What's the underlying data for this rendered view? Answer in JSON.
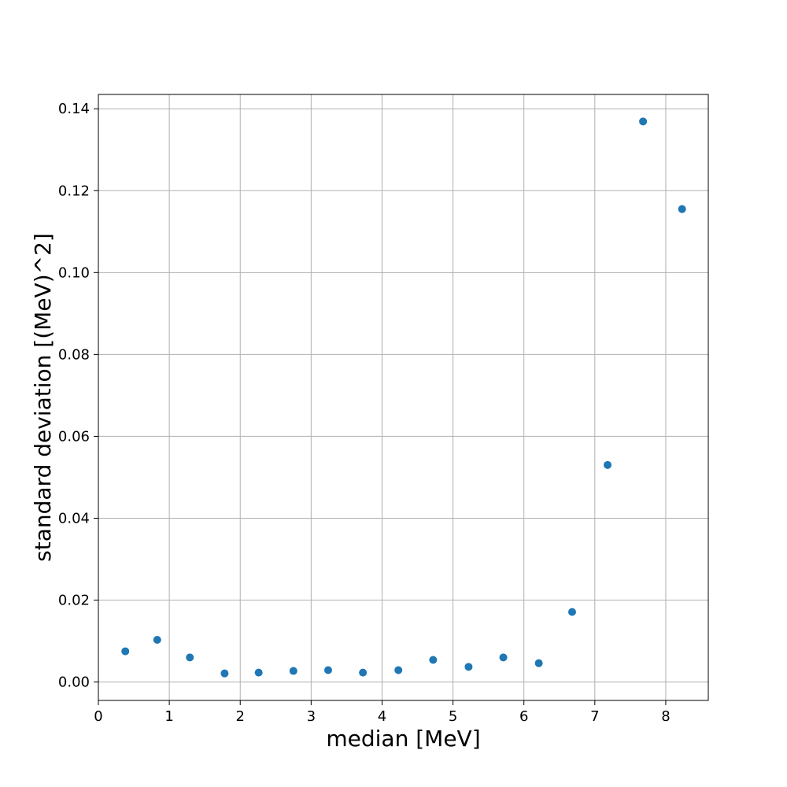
{
  "chart_data": {
    "type": "scatter",
    "title": "",
    "xlabel": "median [MeV]",
    "ylabel": "standard deviation [(MeV)^2]",
    "xlim": [
      0,
      8.6
    ],
    "ylim": [
      -0.0045,
      0.1435
    ],
    "grid": true,
    "marker_color": "#1f77b4",
    "x_ticks": [
      0,
      1,
      2,
      3,
      4,
      5,
      6,
      7,
      8
    ],
    "x_tick_labels": [
      "0",
      "1",
      "2",
      "3",
      "4",
      "5",
      "6",
      "7",
      "8"
    ],
    "y_ticks": [
      0.0,
      0.02,
      0.04,
      0.06,
      0.08,
      0.1,
      0.12,
      0.14
    ],
    "y_tick_labels": [
      "0.00",
      "0.02",
      "0.04",
      "0.06",
      "0.08",
      "0.10",
      "0.12",
      "0.14"
    ],
    "series": [
      {
        "x": [
          0.38,
          0.83,
          1.29,
          1.78,
          2.26,
          2.75,
          3.24,
          3.73,
          4.23,
          4.72,
          5.22,
          5.71,
          6.21,
          6.68,
          7.18,
          7.68,
          8.23
        ],
        "y": [
          0.0075,
          0.0103,
          0.006,
          0.0021,
          0.0023,
          0.0027,
          0.0029,
          0.0023,
          0.0029,
          0.0054,
          0.0037,
          0.006,
          0.0046,
          0.0171,
          0.053,
          0.1369,
          0.1155
        ]
      }
    ]
  }
}
